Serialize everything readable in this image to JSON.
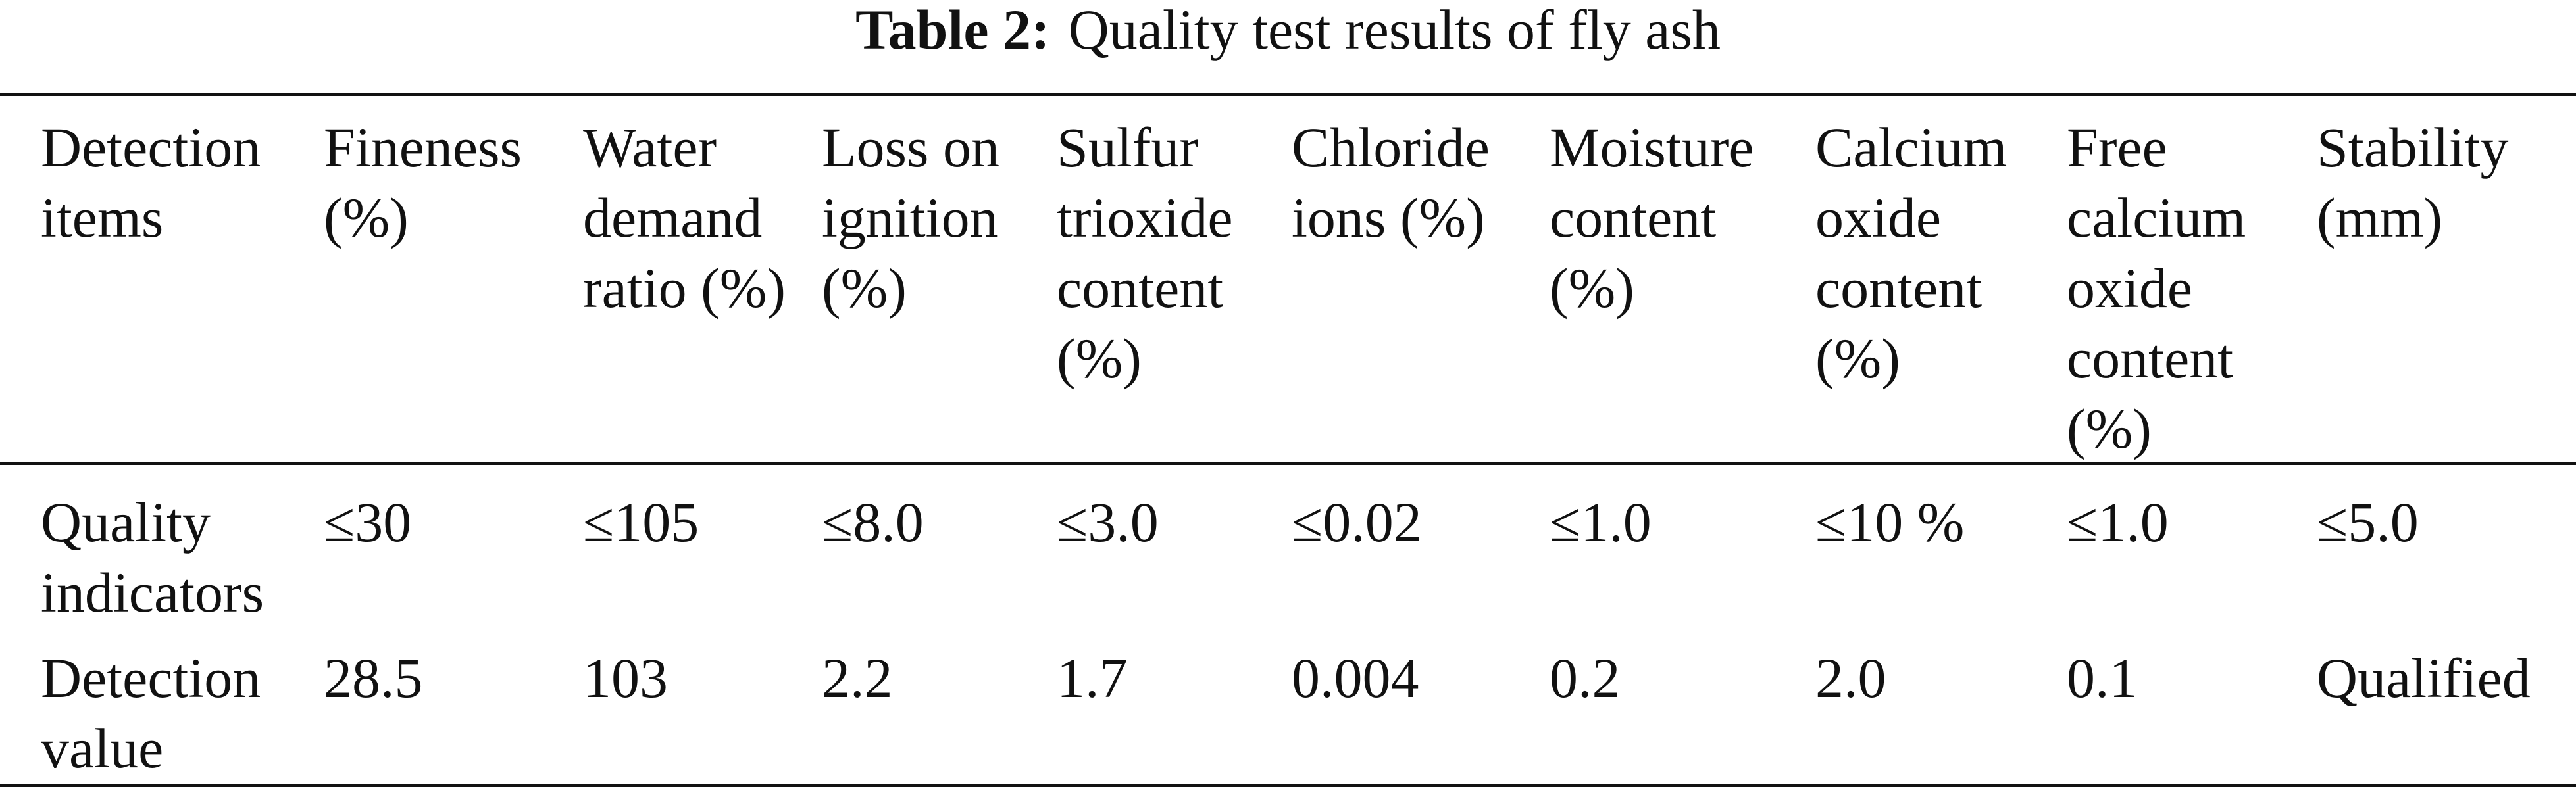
{
  "caption": {
    "label": "Table 2:",
    "text": "Quality test results of fly ash"
  },
  "table": {
    "header": [
      "Detection items",
      "Fineness (%)",
      "Water demand ratio (%)",
      "Loss on ignition (%)",
      "Sulfur trioxide content (%)",
      "Chloride ions (%)",
      "Moisture content (%)",
      "Calcium oxide content (%)",
      "Free calcium oxide content (%)",
      "Stability (mm)"
    ],
    "rows": [
      [
        "Quality indicators",
        "≤30",
        "≤105",
        "≤8.0",
        "≤3.0",
        "≤0.02",
        "≤1.0",
        "≤10 %",
        "≤1.0",
        "≤5.0"
      ],
      [
        "Detection value",
        "28.5",
        "103",
        "2.2",
        "1.7",
        "0.004",
        "0.2",
        "2.0",
        "0.1",
        "Qualified"
      ]
    ]
  }
}
